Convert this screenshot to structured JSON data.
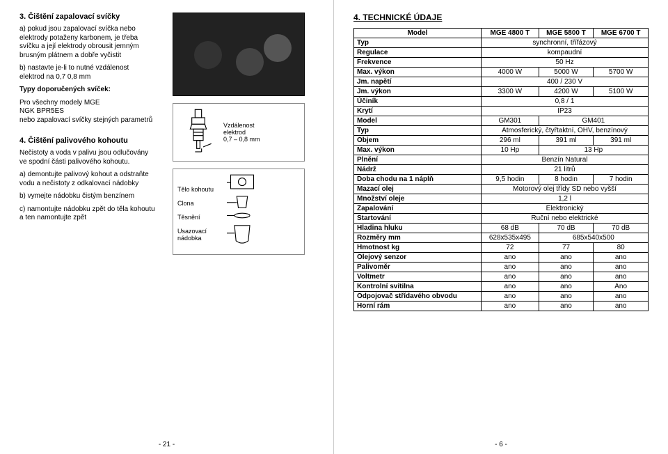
{
  "left": {
    "title": "3. Čištění zapalovací svíčky",
    "p_a": "a) pokud jsou zapalovací svíčka nebo elektrody potaženy karbonem, je třeba svíčku a její elektrody obrousit jemným brusným plátnem a dobře vyčistit",
    "p_b": "b) nastavte   je-li to nutné vzdálenost elektrod na 0,7   0,8 mm",
    "types_h": "Typy doporučených svíček:",
    "types_p": "Pro všechny modely MGE\nNGK BPR5ES\nnebo zapalovací svíčky stejných parametrů",
    "title4": "4. Čištění palivového kohoutu",
    "p4_intro": "Nečistoty a voda v palivu jsou odlučovány ve spodní části palivového kohoutu.",
    "p4_a": "a) demontujte palivový kohout a odstraňte vodu a nečistoty z odkalovací nádobky",
    "p4_b": "b) vymejte nádobku čistým benzínem",
    "p4_c": "c) namontujte nádobku zpět do těla kohoutu a ten namontujte zpět",
    "d1_l1": "Vzdálenost",
    "d1_l2": "elektrod",
    "d1_l3": "0,7 – 0,8 mm",
    "d2_l1": "Tělo kohoutu",
    "d2_l2": "Clona",
    "d2_l3": "Těsnění",
    "d2_l4": "Usazovací",
    "d2_l5": "nádobka",
    "footer": "- 21 -"
  },
  "right": {
    "title": "4. TECHNICKÉ ÚDAJE",
    "footer": "- 6 -",
    "head": [
      "Model",
      "MGE 4800 T",
      "MGE 5800 T",
      "MGE 6700 T"
    ],
    "rows": [
      [
        "Typ",
        {
          "span": 3,
          "v": "synchronní, třífázový"
        }
      ],
      [
        "Regulace",
        {
          "span": 3,
          "v": "kompaudní"
        }
      ],
      [
        "Frekvence",
        {
          "span": 3,
          "v": "50 Hz"
        }
      ],
      [
        "Max. výkon",
        "4000 W",
        "5000 W",
        "5700 W"
      ],
      [
        "Jm. napětí",
        {
          "span": 3,
          "v": "400 / 230 V"
        }
      ],
      [
        "Jm. výkon",
        "3300 W",
        "4200 W",
        "5100 W"
      ],
      [
        "Účiník",
        {
          "span": 3,
          "v": "0,8 / 1"
        }
      ],
      [
        "Krytí",
        {
          "span": 3,
          "v": "IP23"
        }
      ],
      [
        "Model",
        "GM301",
        {
          "span": 2,
          "v": "GM401"
        }
      ],
      [
        "Typ",
        {
          "span": 3,
          "v": "Atmosferický, čtyřtaktní, OHV, benzínový"
        }
      ],
      [
        "Objem",
        "296 ml",
        "391 ml",
        "391 ml"
      ],
      [
        "Max. výkon",
        "10 Hp",
        {
          "span": 2,
          "v": "13 Hp"
        }
      ],
      [
        "Plnění",
        {
          "span": 3,
          "v": "Benzín Natural"
        }
      ],
      [
        "Nádrž",
        {
          "span": 3,
          "v": "21 litrů"
        }
      ],
      [
        "Doba chodu na 1 náplň",
        "9,5 hodin",
        "8 hodin",
        "7 hodin"
      ],
      [
        "Mazací olej",
        {
          "span": 3,
          "v": "Motorový olej třídy SD nebo vyšší"
        }
      ],
      [
        "Množství oleje",
        {
          "span": 3,
          "v": "1,2 l"
        }
      ],
      [
        "Zapalování",
        {
          "span": 3,
          "v": "Elektronický"
        }
      ],
      [
        "Startování",
        {
          "span": 3,
          "v": "Ruční nebo elektrické"
        }
      ],
      [
        "Hladina hluku",
        "68 dB",
        "70 dB",
        "70 dB"
      ],
      [
        "Rozměry mm",
        "628x535x495",
        {
          "span": 2,
          "v": "685x540x500"
        }
      ],
      [
        "Hmotnost kg",
        "72",
        "77",
        "80"
      ],
      [
        "Olejový senzor",
        "ano",
        "ano",
        "ano"
      ],
      [
        "Palivoměr",
        "ano",
        "ano",
        "ano"
      ],
      [
        "Voltmetr",
        "ano",
        "ano",
        "ano"
      ],
      [
        "Kontrolní svítilna",
        "ano",
        "ano",
        "Ano"
      ],
      [
        "Odpojovač střídavého obvodu",
        "ano",
        "ano",
        "ano"
      ],
      [
        "Horní rám",
        "ano",
        "ano",
        "ano"
      ]
    ]
  }
}
